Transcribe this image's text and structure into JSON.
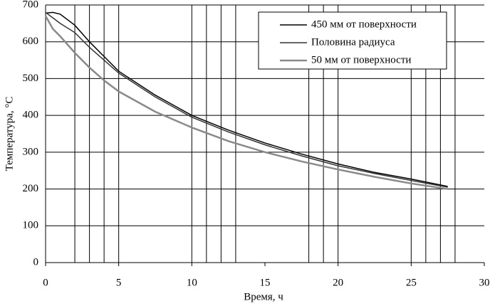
{
  "chart_data": {
    "type": "line",
    "x_label": "Время, ч",
    "y_label": "Температура, °C",
    "x": [
      0,
      0.5,
      1,
      2,
      3,
      4,
      5,
      7.5,
      10,
      12.5,
      15,
      17.5,
      20,
      22.5,
      25,
      27.5
    ],
    "series": [
      {
        "name": "450 мм от поверхности",
        "color": "#000000",
        "values": [
          678,
          680,
          675,
          645,
          600,
          560,
          520,
          455,
          400,
          360,
          325,
          295,
          268,
          245,
          227,
          207
        ]
      },
      {
        "name": "Половина радиуса",
        "color": "#333333",
        "values": [
          680,
          665,
          650,
          625,
          585,
          550,
          515,
          450,
          395,
          355,
          320,
          290,
          263,
          242,
          223,
          205
        ]
      },
      {
        "name": "50 мм от поверхности",
        "color": "#8a8a8a",
        "values": [
          670,
          635,
          615,
          570,
          530,
          495,
          465,
          410,
          367,
          330,
          300,
          275,
          253,
          233,
          215,
          200
        ]
      }
    ],
    "xlim": [
      0,
      30
    ],
    "xticks": [
      0,
      5,
      10,
      15,
      20,
      25,
      30
    ],
    "xgrid": [
      2,
      3,
      4,
      5,
      10,
      11,
      12,
      13,
      18,
      19,
      20,
      25,
      26,
      27,
      28
    ],
    "ylim": [
      0,
      700
    ],
    "yticks": [
      0,
      100,
      200,
      300,
      400,
      500,
      600,
      700
    ],
    "grid": true,
    "legend": "top-right"
  }
}
